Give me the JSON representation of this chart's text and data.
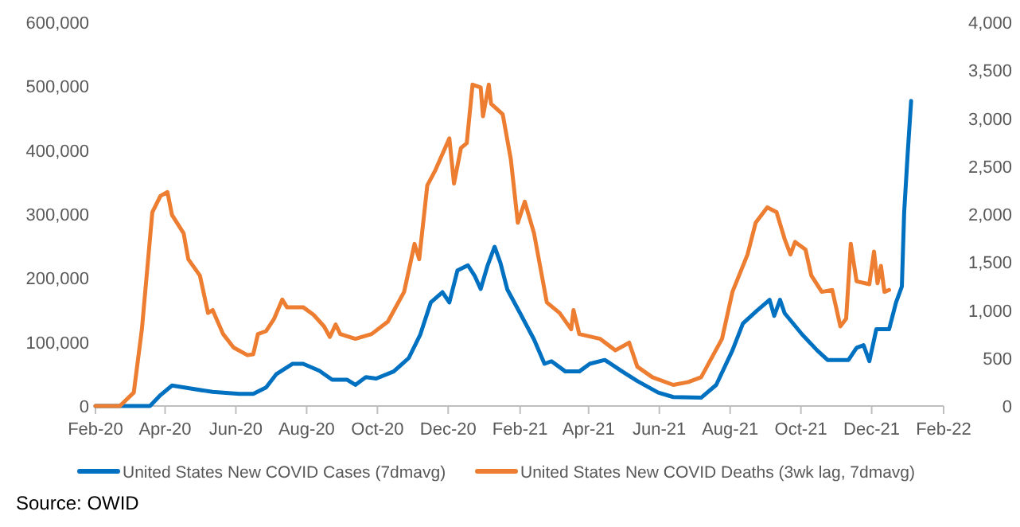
{
  "chart_data": {
    "type": "line",
    "xlim": [
      "2020-02-01",
      "2022-02-01"
    ],
    "xticks": [
      {
        "value": "2020-02-01",
        "label": "Feb-20"
      },
      {
        "value": "2020-04-01",
        "label": "Apr-20"
      },
      {
        "value": "2020-06-01",
        "label": "Jun-20"
      },
      {
        "value": "2020-08-01",
        "label": "Aug-20"
      },
      {
        "value": "2020-10-01",
        "label": "Oct-20"
      },
      {
        "value": "2020-12-01",
        "label": "Dec-20"
      },
      {
        "value": "2021-02-01",
        "label": "Feb-21"
      },
      {
        "value": "2021-04-01",
        "label": "Apr-21"
      },
      {
        "value": "2021-06-01",
        "label": "Jun-21"
      },
      {
        "value": "2021-08-01",
        "label": "Aug-21"
      },
      {
        "value": "2021-10-01",
        "label": "Oct-21"
      },
      {
        "value": "2021-12-01",
        "label": "Dec-21"
      },
      {
        "value": "2022-02-01",
        "label": "Feb-22"
      }
    ],
    "ylim": [
      0,
      600000
    ],
    "yticks": [
      {
        "value": 0,
        "label": "0"
      },
      {
        "value": 100000,
        "label": "100,000"
      },
      {
        "value": 200000,
        "label": "200,000"
      },
      {
        "value": 300000,
        "label": "300,000"
      },
      {
        "value": 400000,
        "label": "400,000"
      },
      {
        "value": 500000,
        "label": "500,000"
      },
      {
        "value": 600000,
        "label": "600,000"
      }
    ],
    "y2lim": [
      0,
      4000
    ],
    "y2ticks": [
      {
        "value": 0,
        "label": "0"
      },
      {
        "value": 500,
        "label": "500"
      },
      {
        "value": 1000,
        "label": "1,000"
      },
      {
        "value": 1500,
        "label": "1,500"
      },
      {
        "value": 2000,
        "label": "2,000"
      },
      {
        "value": 2500,
        "label": "2,500"
      },
      {
        "value": 3000,
        "label": "3,000"
      },
      {
        "value": 3500,
        "label": "3,500"
      },
      {
        "value": 4000,
        "label": "4,000"
      }
    ],
    "grid": false,
    "legend": "bottom",
    "marker": "none",
    "line_style": "solid",
    "annotations": [
      "Source: OWID"
    ],
    "series": [
      {
        "name": "United States New COVID Cases (7dmavg)",
        "color": "#0070c0",
        "x": [
          "2020-02-01",
          "2020-03-19",
          "2020-03-28",
          "2020-04-07",
          "2020-04-24",
          "2020-05-12",
          "2020-06-04",
          "2020-06-16",
          "2020-06-27",
          "2020-07-06",
          "2020-07-20",
          "2020-07-29",
          "2020-08-12",
          "2020-08-23",
          "2020-09-05",
          "2020-09-12",
          "2020-09-21",
          "2020-09-30",
          "2020-10-15",
          "2020-10-28",
          "2020-11-07",
          "2020-11-16",
          "2020-11-26",
          "2020-12-02",
          "2020-12-09",
          "2020-12-18",
          "2020-12-24",
          "2020-12-29",
          "2021-01-04",
          "2021-01-10",
          "2021-01-15",
          "2021-01-21",
          "2021-02-01",
          "2021-02-13",
          "2021-02-22",
          "2021-02-28",
          "2021-03-12",
          "2021-03-24",
          "2021-04-02",
          "2021-04-15",
          "2021-04-30",
          "2021-05-13",
          "2021-05-31",
          "2021-06-13",
          "2021-07-07",
          "2021-07-20",
          "2021-08-03",
          "2021-08-12",
          "2021-08-24",
          "2021-09-04",
          "2021-09-08",
          "2021-09-13",
          "2021-09-17",
          "2021-10-02",
          "2021-10-15",
          "2021-10-24",
          "2021-11-11",
          "2021-11-18",
          "2021-11-24",
          "2021-11-29",
          "2021-12-05",
          "2021-12-16",
          "2021-12-22",
          "2021-12-27",
          "2021-12-29",
          "2022-01-01",
          "2022-01-04"
        ],
        "values": [
          0,
          0,
          17000,
          32000,
          27000,
          22000,
          19000,
          19000,
          29000,
          50000,
          66000,
          66000,
          55000,
          41000,
          41000,
          33000,
          45000,
          43000,
          54000,
          75000,
          112000,
          162000,
          178000,
          162000,
          212000,
          220000,
          203000,
          183000,
          220000,
          249000,
          224000,
          182000,
          145000,
          104000,
          66000,
          70000,
          54000,
          54000,
          66000,
          72000,
          54000,
          39000,
          21000,
          14000,
          13000,
          33000,
          87000,
          129000,
          149000,
          166000,
          141000,
          166000,
          145000,
          112000,
          87000,
          72000,
          72000,
          91000,
          95000,
          70000,
          120000,
          120000,
          162000,
          187000,
          303000,
          394000,
          477000
        ]
      },
      {
        "name": "United States New COVID Deaths (3wk lag, 7dmavg)",
        "color": "#ed7d31",
        "axis": "y2",
        "x": [
          "2020-02-01",
          "2020-02-22",
          "2020-03-05",
          "2020-03-12",
          "2020-03-21",
          "2020-03-28",
          "2020-04-03",
          "2020-04-07",
          "2020-04-17",
          "2020-04-21",
          "2020-05-01",
          "2020-05-08",
          "2020-05-12",
          "2020-05-21",
          "2020-05-30",
          "2020-06-11",
          "2020-06-16",
          "2020-06-20",
          "2020-06-27",
          "2020-07-04",
          "2020-07-11",
          "2020-07-15",
          "2020-07-29",
          "2020-08-07",
          "2020-08-16",
          "2020-08-21",
          "2020-08-26",
          "2020-08-30",
          "2020-09-12",
          "2020-09-26",
          "2020-10-10",
          "2020-10-24",
          "2020-11-02",
          "2020-11-06",
          "2020-11-13",
          "2020-11-20",
          "2020-12-02",
          "2020-12-06",
          "2020-12-12",
          "2020-12-17",
          "2020-12-22",
          "2020-12-29",
          "2020-12-31",
          "2021-01-05",
          "2021-01-07",
          "2021-01-17",
          "2021-01-24",
          "2021-01-30",
          "2021-02-05",
          "2021-02-13",
          "2021-02-24",
          "2021-03-07",
          "2021-03-17",
          "2021-03-19",
          "2021-03-24",
          "2021-04-11",
          "2021-04-24",
          "2021-05-06",
          "2021-05-13",
          "2021-05-26",
          "2021-06-13",
          "2021-06-26",
          "2021-07-07",
          "2021-07-25",
          "2021-08-03",
          "2021-08-16",
          "2021-08-23",
          "2021-09-02",
          "2021-09-10",
          "2021-09-17",
          "2021-09-22",
          "2021-09-26",
          "2021-10-05",
          "2021-10-10",
          "2021-10-19",
          "2021-10-28",
          "2021-11-04",
          "2021-11-09",
          "2021-11-13",
          "2021-11-18",
          "2021-11-29",
          "2021-12-03",
          "2021-12-06",
          "2021-12-09",
          "2021-12-12",
          "2021-12-16"
        ],
        "values": [
          0,
          0,
          140,
          800,
          2020,
          2190,
          2230,
          1990,
          1800,
          1530,
          1360,
          970,
          1000,
          750,
          610,
          530,
          540,
          750,
          780,
          910,
          1110,
          1030,
          1030,
          950,
          830,
          720,
          850,
          750,
          700,
          750,
          880,
          1190,
          1690,
          1530,
          2300,
          2460,
          2790,
          2320,
          2690,
          2740,
          3350,
          3320,
          3020,
          3350,
          3150,
          3040,
          2570,
          1910,
          2130,
          1800,
          1080,
          970,
          800,
          1000,
          750,
          700,
          580,
          660,
          410,
          300,
          220,
          250,
          300,
          700,
          1190,
          1580,
          1910,
          2070,
          2020,
          1740,
          1580,
          1710,
          1630,
          1360,
          1190,
          1210,
          830,
          910,
          1690,
          1300,
          1270,
          1610,
          1280,
          1460,
          1190,
          1210
        ]
      }
    ]
  }
}
